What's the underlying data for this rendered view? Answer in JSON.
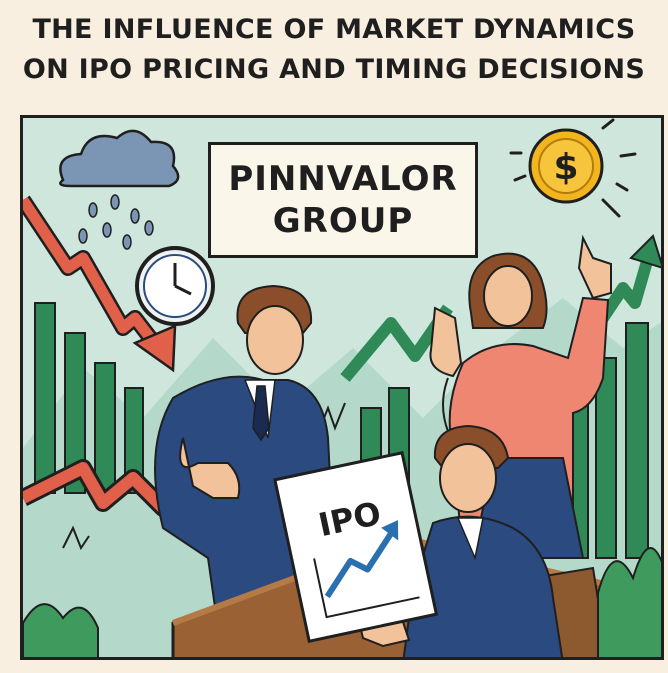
{
  "title": {
    "line1": "THE INFLUENCE OF MARKET DYNAMICS",
    "line2": "ON IPO PRICING AND TIMING DECISIONS"
  },
  "sign": {
    "line1": "PINNVALOR",
    "line2": "GROUP"
  },
  "document": {
    "label": "IPO"
  },
  "coin": {
    "symbol": "$"
  },
  "colors": {
    "background": "#f8efe0",
    "panel": "#cfe6dc",
    "red_arrow": "#e0604a",
    "green_bar": "#2f8a57",
    "suit_blue": "#2a4a80",
    "coin_gold": "#f2b51d",
    "desk_brown": "#9a6234"
  },
  "icons": [
    "rain-cloud-icon",
    "clock-icon",
    "dollar-coin-icon",
    "down-trend-arrow-icon",
    "up-trend-arrow-icon"
  ]
}
